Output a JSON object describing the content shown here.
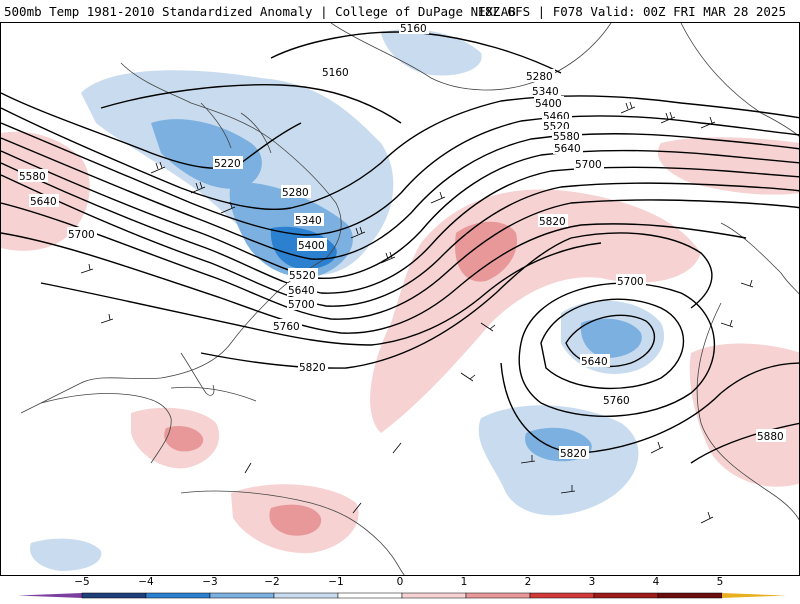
{
  "header": {
    "left_title": "500mb Temp 1981-2010 Standardized Anomaly | College of DuPage NEXLAB",
    "right_title": "18Z GFS | F078 Valid: 00Z FRI MAR 28 2025"
  },
  "colors": {
    "neg5": "#7b3fa0",
    "neg4": "#1f3f7a",
    "neg3": "#2b80d0",
    "neg2": "#7cb0e0",
    "neg1": "#c9dcef",
    "zero": "#ffffff",
    "pos1": "#f6d2d2",
    "pos2": "#e89898",
    "pos3": "#d23a3a",
    "pos4": "#9e1b1b",
    "pos5": "#6a0d0d",
    "pos6": "#e8b020",
    "contour": "#000000",
    "coastline": "#444444",
    "wind_barb": "#000000"
  },
  "colorbar": {
    "ticks": [
      "−5",
      "−4",
      "−3",
      "−2",
      "−1",
      "0",
      "1",
      "2",
      "3",
      "4",
      "5"
    ]
  },
  "contour_labels": [
    {
      "label": "5160",
      "group": "ridge-north"
    },
    {
      "label": "5160",
      "group": "canada"
    },
    {
      "label": "5220",
      "group": "canada"
    },
    {
      "label": "5280",
      "group": "atlantic-north"
    },
    {
      "label": "5280",
      "group": "canada"
    },
    {
      "label": "5340",
      "group": "atlantic-north"
    },
    {
      "label": "5340",
      "group": "trough"
    },
    {
      "label": "5400",
      "group": "atlantic-north"
    },
    {
      "label": "5400",
      "group": "trough"
    },
    {
      "label": "5460",
      "group": "atlantic-north"
    },
    {
      "label": "5520",
      "group": "atlantic-north"
    },
    {
      "label": "5520",
      "group": "trough"
    },
    {
      "label": "5580",
      "group": "atlantic-north"
    },
    {
      "label": "5580",
      "group": "west"
    },
    {
      "label": "5640",
      "group": "atlantic-north"
    },
    {
      "label": "5640",
      "group": "west"
    },
    {
      "label": "5640",
      "group": "trough"
    },
    {
      "label": "5640",
      "group": "cutoff-low"
    },
    {
      "label": "5700",
      "group": "atlantic-north"
    },
    {
      "label": "5700",
      "group": "west"
    },
    {
      "label": "5700",
      "group": "trough"
    },
    {
      "label": "5700",
      "group": "cutoff-low"
    },
    {
      "label": "5760",
      "group": "trough"
    },
    {
      "label": "5760",
      "group": "cutoff-low"
    },
    {
      "label": "5820",
      "group": "ridge"
    },
    {
      "label": "5820",
      "group": "gulf"
    },
    {
      "label": "5820",
      "group": "cutoff-low-south"
    },
    {
      "label": "5880",
      "group": "africa"
    }
  ]
}
